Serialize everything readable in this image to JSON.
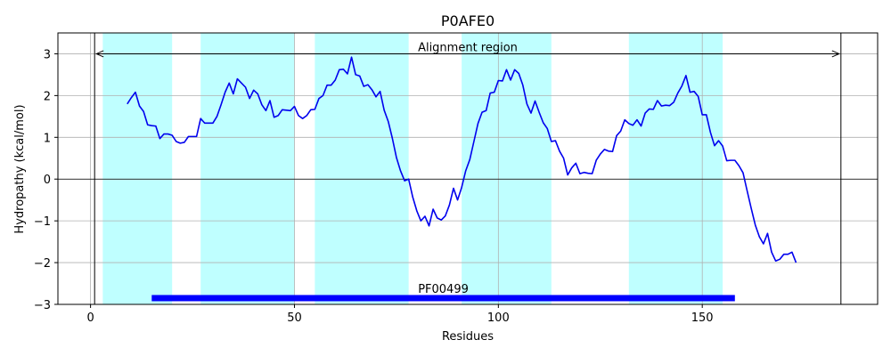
{
  "chart_data": {
    "type": "line",
    "title": "P0AFE0",
    "xlabel": "Residues",
    "ylabel": "Hydropathy (kcal/mol)",
    "xlim": [
      -8,
      193
    ],
    "ylim": [
      -3,
      3.5
    ],
    "xticks": [
      0,
      50,
      100,
      150
    ],
    "yticks": [
      -3,
      -2,
      -1,
      0,
      1,
      2,
      3
    ],
    "grid": true,
    "colors": {
      "line": "#0000ee",
      "region": "#bfffff",
      "domain_bar": "#0000ff",
      "axis": "#000000",
      "grid": "#b0b0b0"
    },
    "shaded_regions": [
      {
        "start": 3,
        "end": 20
      },
      {
        "start": 27,
        "end": 50
      },
      {
        "start": 55,
        "end": 78
      },
      {
        "start": 91,
        "end": 113
      },
      {
        "start": 132,
        "end": 155
      }
    ],
    "vertical_lines": [
      1,
      184
    ],
    "alignment_region": {
      "label": "Alignment region",
      "start": 1,
      "end": 184,
      "y": 3
    },
    "domain": {
      "label": "PF00499",
      "start": 15,
      "end": 158,
      "y": -2.85
    },
    "series": [
      {
        "x": [
          9,
          10,
          11,
          12,
          13,
          14,
          15,
          16,
          17,
          18,
          19,
          20,
          21,
          22,
          23,
          24,
          25,
          26,
          27,
          28,
          29,
          30,
          31,
          32,
          33,
          34,
          35,
          36,
          37,
          38,
          39,
          40,
          41,
          42,
          43,
          44,
          45,
          46,
          47,
          48,
          49,
          50,
          51,
          52,
          53,
          54,
          55,
          56,
          57,
          58,
          59,
          60,
          61,
          62,
          63,
          64,
          65,
          66,
          67,
          68,
          69,
          70,
          71,
          72,
          73,
          74,
          75,
          76,
          77,
          78,
          79,
          80,
          81,
          82,
          83,
          84,
          85,
          86,
          87,
          88,
          89,
          90,
          91,
          92,
          93,
          94,
          95,
          96,
          97,
          98,
          99,
          100,
          101,
          102,
          103,
          104,
          105,
          106,
          107,
          108,
          109,
          110,
          111,
          112,
          113,
          114,
          115,
          116,
          117,
          118,
          119,
          120,
          121,
          122,
          123,
          124,
          125,
          126,
          127,
          128,
          129,
          130,
          131,
          132,
          133,
          134,
          135,
          136,
          137,
          138,
          139,
          140,
          141,
          142,
          143,
          144,
          145,
          146,
          147,
          148,
          149,
          150,
          151,
          152,
          153,
          154,
          155,
          156,
          157,
          158,
          159,
          160,
          161,
          162,
          163,
          164,
          165,
          166,
          167,
          168,
          169,
          170,
          171,
          172,
          173
        ],
        "values": [
          1.8,
          1.95,
          2.08,
          1.75,
          1.62,
          1.3,
          1.28,
          1.27,
          0.97,
          1.08,
          1.08,
          1.05,
          0.9,
          0.86,
          0.88,
          1.02,
          1.02,
          1.02,
          1.45,
          1.34,
          1.34,
          1.34,
          1.5,
          1.78,
          2.08,
          2.3,
          2.04,
          2.4,
          2.3,
          2.2,
          1.93,
          2.13,
          2.04,
          1.78,
          1.64,
          1.88,
          1.48,
          1.52,
          1.66,
          1.65,
          1.64,
          1.74,
          1.52,
          1.45,
          1.52,
          1.66,
          1.67,
          1.93,
          2.0,
          2.25,
          2.25,
          2.37,
          2.62,
          2.63,
          2.52,
          2.92,
          2.5,
          2.47,
          2.22,
          2.26,
          2.14,
          1.97,
          2.1,
          1.65,
          1.38,
          0.98,
          0.52,
          0.2,
          -0.04,
          0.0,
          -0.43,
          -0.76,
          -1.0,
          -0.89,
          -1.12,
          -0.72,
          -0.93,
          -0.98,
          -0.88,
          -0.62,
          -0.22,
          -0.5,
          -0.2,
          0.2,
          0.47,
          0.9,
          1.33,
          1.6,
          1.64,
          2.06,
          2.08,
          2.36,
          2.35,
          2.62,
          2.37,
          2.62,
          2.53,
          2.25,
          1.8,
          1.58,
          1.87,
          1.6,
          1.35,
          1.21,
          0.9,
          0.92,
          0.67,
          0.5,
          0.1,
          0.27,
          0.38,
          0.13,
          0.16,
          0.14,
          0.13,
          0.45,
          0.6,
          0.71,
          0.67,
          0.66,
          1.04,
          1.15,
          1.42,
          1.33,
          1.29,
          1.42,
          1.27,
          1.58,
          1.68,
          1.67,
          1.88,
          1.75,
          1.77,
          1.76,
          1.84,
          2.06,
          2.23,
          2.48,
          2.08,
          2.1,
          1.98,
          1.54,
          1.54,
          1.12,
          0.8,
          0.92,
          0.79,
          0.44,
          0.45,
          0.45,
          0.32,
          0.15,
          -0.28,
          -0.7,
          -1.1,
          -1.38,
          -1.55,
          -1.3,
          -1.75,
          -1.96,
          -1.92,
          -1.8,
          -1.8,
          -1.75,
          -2.0
        ]
      }
    ]
  }
}
